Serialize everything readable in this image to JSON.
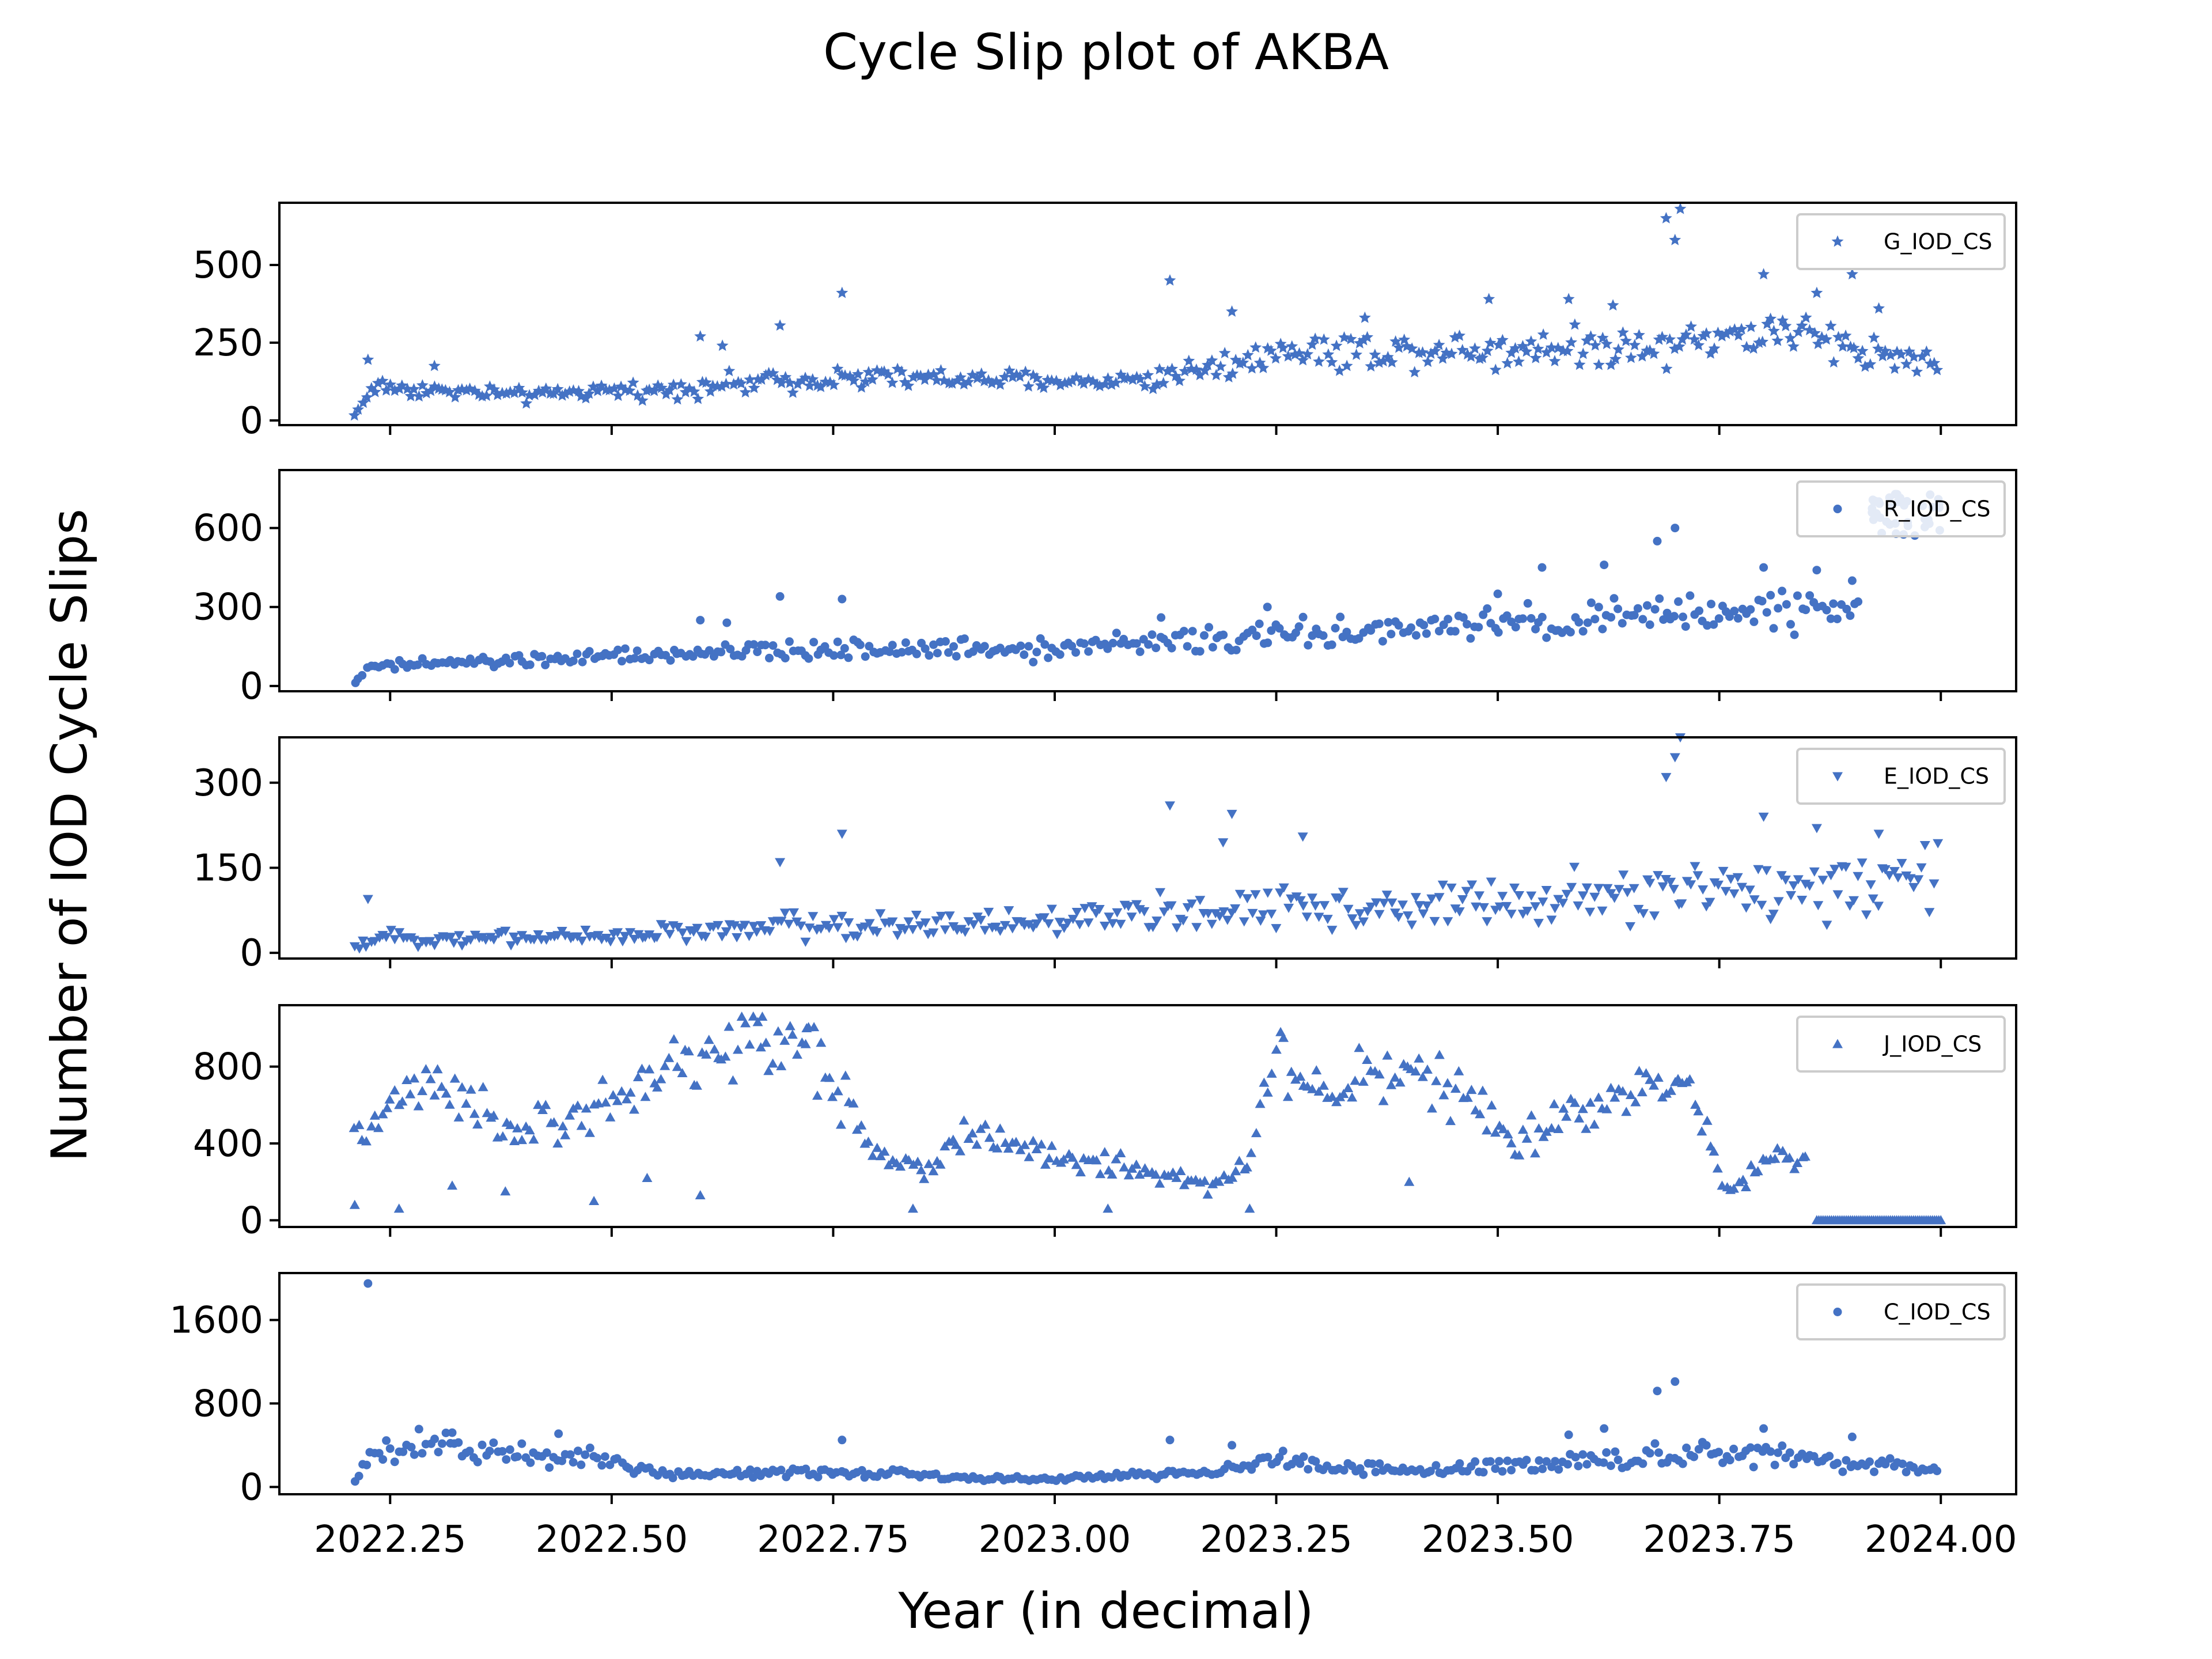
{
  "figure": {
    "title": "Cycle Slip plot of AKBA",
    "xlabel": "Year (in decimal)",
    "ylabel": "Number of IOD Cycle Slips",
    "marker_color": "#4472c4"
  },
  "chart_data": [
    {
      "type": "scatter",
      "series": [
        {
          "name": "G_IOD_CS",
          "marker": "star"
        }
      ],
      "xlim": [
        2022.125,
        2024.085
      ],
      "ylim": [
        -15,
        700
      ],
      "yticks": [
        "0",
        "250",
        "500"
      ],
      "ytick_values": [
        0,
        250,
        500
      ],
      "xticks": [
        "2022.25",
        "2022.50",
        "2022.75",
        "2023.00",
        "2023.25",
        "2023.50",
        "2023.75",
        "2024.00"
      ],
      "xtick_values": [
        2022.25,
        2022.5,
        2022.75,
        2023.0,
        2023.25,
        2023.5,
        2023.75,
        2024.0
      ],
      "legend": "upper right",
      "x_range": [
        2022.21,
        2024.0
      ],
      "baseline": [
        [
          2022.21,
          15
        ],
        [
          2022.23,
          110
        ],
        [
          2022.4,
          80
        ],
        [
          2022.55,
          100
        ],
        [
          2022.75,
          140
        ],
        [
          2023.0,
          125
        ],
        [
          2023.1,
          130
        ],
        [
          2023.15,
          160
        ],
        [
          2023.25,
          220
        ],
        [
          2023.5,
          230
        ],
        [
          2023.7,
          250
        ],
        [
          2023.8,
          290
        ],
        [
          2023.9,
          240
        ],
        [
          2024.0,
          180
        ]
      ],
      "outliers": [
        [
          2022.225,
          195
        ],
        [
          2022.3,
          175
        ],
        [
          2022.6,
          270
        ],
        [
          2022.625,
          240
        ],
        [
          2022.69,
          305
        ],
        [
          2022.76,
          410
        ],
        [
          2023.13,
          450
        ],
        [
          2023.2,
          350
        ],
        [
          2023.35,
          330
        ],
        [
          2023.49,
          390
        ],
        [
          2023.58,
          390
        ],
        [
          2023.63,
          370
        ],
        [
          2023.69,
          650
        ],
        [
          2023.7,
          580
        ],
        [
          2023.706,
          680
        ],
        [
          2023.8,
          470
        ],
        [
          2023.86,
          410
        ],
        [
          2023.9,
          470
        ],
        [
          2023.93,
          360
        ]
      ],
      "spread": 0.22
    },
    {
      "type": "scatter",
      "series": [
        {
          "name": "R_IOD_CS",
          "marker": "circle"
        }
      ],
      "xlim": [
        2022.125,
        2024.085
      ],
      "ylim": [
        -20,
        820
      ],
      "yticks": [
        "0",
        "300",
        "600"
      ],
      "ytick_values": [
        0,
        300,
        600
      ],
      "xticks": [
        "2022.25",
        "2022.50",
        "2022.75",
        "2023.00",
        "2023.25",
        "2023.50",
        "2023.75",
        "2024.00"
      ],
      "xtick_values": [
        2022.25,
        2022.5,
        2022.75,
        2023.0,
        2023.25,
        2023.5,
        2023.75,
        2024.0
      ],
      "legend": "upper right",
      "x_range": [
        2022.21,
        2023.91
      ],
      "baseline": [
        [
          2022.21,
          15
        ],
        [
          2022.23,
          75
        ],
        [
          2022.5,
          110
        ],
        [
          2022.75,
          140
        ],
        [
          2023.0,
          145
        ],
        [
          2023.25,
          190
        ],
        [
          2023.5,
          230
        ],
        [
          2023.75,
          280
        ],
        [
          2023.91,
          300
        ]
      ],
      "outliers": [
        [
          2022.6,
          250
        ],
        [
          2022.63,
          240
        ],
        [
          2022.69,
          340
        ],
        [
          2022.76,
          330
        ],
        [
          2023.12,
          260
        ],
        [
          2023.24,
          300
        ],
        [
          2023.5,
          350
        ],
        [
          2023.55,
          450
        ],
        [
          2023.62,
          460
        ],
        [
          2023.68,
          550
        ],
        [
          2023.7,
          600
        ],
        [
          2023.8,
          450
        ],
        [
          2023.86,
          440
        ],
        [
          2023.9,
          400
        ]
      ],
      "cluster": {
        "x_range": [
          2023.92,
          2024.0
        ],
        "center": 650,
        "spread": 80,
        "count": 40
      },
      "spread": 0.22
    },
    {
      "type": "scatter",
      "series": [
        {
          "name": "E_IOD_CS",
          "marker": "triangle-down"
        }
      ],
      "xlim": [
        2022.125,
        2024.085
      ],
      "ylim": [
        -10,
        380
      ],
      "yticks": [
        "0",
        "150",
        "300"
      ],
      "ytick_values": [
        0,
        150,
        300
      ],
      "xticks": [
        "2022.25",
        "2022.50",
        "2022.75",
        "2023.00",
        "2023.25",
        "2023.50",
        "2023.75",
        "2024.00"
      ],
      "xtick_values": [
        2022.25,
        2022.5,
        2022.75,
        2023.0,
        2023.25,
        2023.5,
        2023.75,
        2024.0
      ],
      "legend": "upper right",
      "x_range": [
        2022.21,
        2024.0
      ],
      "baseline": [
        [
          2022.21,
          5
        ],
        [
          2022.23,
          25
        ],
        [
          2022.5,
          30
        ],
        [
          2022.75,
          50
        ],
        [
          2023.0,
          55
        ],
        [
          2023.25,
          80
        ],
        [
          2023.5,
          85
        ],
        [
          2023.75,
          110
        ],
        [
          2024.0,
          140
        ]
      ],
      "outliers": [
        [
          2022.225,
          95
        ],
        [
          2022.69,
          160
        ],
        [
          2022.76,
          210
        ],
        [
          2023.13,
          260
        ],
        [
          2023.2,
          245
        ],
        [
          2023.19,
          195
        ],
        [
          2023.28,
          205
        ],
        [
          2023.69,
          310
        ],
        [
          2023.7,
          345
        ],
        [
          2023.706,
          380
        ],
        [
          2023.8,
          240
        ],
        [
          2023.86,
          220
        ],
        [
          2023.93,
          210
        ]
      ],
      "spread": 0.4
    },
    {
      "type": "scatter",
      "series": [
        {
          "name": "J_IOD_CS",
          "marker": "triangle-up"
        }
      ],
      "xlim": [
        2022.125,
        2024.085
      ],
      "ylim": [
        -35,
        1120
      ],
      "yticks": [
        "0",
        "400",
        "800"
      ],
      "ytick_values": [
        0,
        400,
        800
      ],
      "xticks": [
        "2022.25",
        "2022.50",
        "2022.75",
        "2023.00",
        "2023.25",
        "2023.50",
        "2023.75",
        "2024.00"
      ],
      "xtick_values": [
        2022.25,
        2022.5,
        2022.75,
        2023.0,
        2023.25,
        2023.5,
        2023.75,
        2024.0
      ],
      "legend": "upper right",
      "x_range": [
        2022.21,
        2023.85
      ],
      "baseline": [
        [
          2022.21,
          400
        ],
        [
          2022.25,
          600
        ],
        [
          2022.3,
          680
        ],
        [
          2022.35,
          550
        ],
        [
          2022.4,
          450
        ],
        [
          2022.5,
          620
        ],
        [
          2022.6,
          850
        ],
        [
          2022.67,
          950
        ],
        [
          2022.73,
          880
        ],
        [
          2022.8,
          350
        ],
        [
          2022.85,
          250
        ],
        [
          2022.9,
          450
        ],
        [
          2023.0,
          330
        ],
        [
          2023.1,
          260
        ],
        [
          2023.18,
          170
        ],
        [
          2023.22,
          300
        ],
        [
          2023.25,
          850
        ],
        [
          2023.3,
          650
        ],
        [
          2023.36,
          800
        ],
        [
          2023.45,
          700
        ],
        [
          2023.52,
          380
        ],
        [
          2023.6,
          600
        ],
        [
          2023.65,
          700
        ],
        [
          2023.72,
          650
        ],
        [
          2023.76,
          150
        ],
        [
          2023.8,
          300
        ],
        [
          2023.85,
          330
        ]
      ],
      "outliers": [
        [
          2022.21,
          80
        ],
        [
          2022.26,
          60
        ],
        [
          2022.32,
          180
        ],
        [
          2022.38,
          150
        ],
        [
          2022.48,
          100
        ],
        [
          2022.54,
          220
        ],
        [
          2022.6,
          130
        ],
        [
          2022.67,
          1060
        ],
        [
          2022.72,
          1000
        ],
        [
          2022.84,
          60
        ],
        [
          2023.06,
          60
        ],
        [
          2023.22,
          60
        ],
        [
          2023.4,
          200
        ]
      ],
      "zero_run": {
        "x_range": [
          2023.86,
          2024.0
        ],
        "value": 0,
        "count": 60
      },
      "spread": 0.18
    },
    {
      "type": "scatter",
      "series": [
        {
          "name": "C_IOD_CS",
          "marker": "circle"
        }
      ],
      "xlim": [
        2022.125,
        2024.085
      ],
      "ylim": [
        -70,
        2050
      ],
      "yticks": [
        "0",
        "800",
        "1600"
      ],
      "ytick_values": [
        0,
        800,
        1600
      ],
      "xticks": [
        "2022.25",
        "2022.50",
        "2022.75",
        "2023.00",
        "2023.25",
        "2023.50",
        "2023.75",
        "2024.00"
      ],
      "xtick_values": [
        2022.25,
        2022.5,
        2022.75,
        2023.0,
        2023.25,
        2023.5,
        2023.75,
        2024.0
      ],
      "legend": "upper right",
      "x_range": [
        2022.21,
        2024.0
      ],
      "baseline": [
        [
          2022.21,
          50
        ],
        [
          2022.23,
          330
        ],
        [
          2022.3,
          380
        ],
        [
          2022.4,
          300
        ],
        [
          2022.5,
          260
        ],
        [
          2022.55,
          120
        ],
        [
          2022.7,
          150
        ],
        [
          2022.8,
          140
        ],
        [
          2022.9,
          90
        ],
        [
          2023.0,
          80
        ],
        [
          2023.1,
          110
        ],
        [
          2023.2,
          160
        ],
        [
          2023.25,
          300
        ],
        [
          2023.3,
          200
        ],
        [
          2023.4,
          150
        ],
        [
          2023.5,
          200
        ],
        [
          2023.6,
          250
        ],
        [
          2023.7,
          320
        ],
        [
          2023.8,
          300
        ],
        [
          2023.9,
          220
        ],
        [
          2024.0,
          150
        ]
      ],
      "outliers": [
        [
          2022.225,
          1950
        ],
        [
          2022.32,
          520
        ],
        [
          2022.44,
          510
        ],
        [
          2022.76,
          450
        ],
        [
          2023.13,
          450
        ],
        [
          2023.2,
          400
        ],
        [
          2023.58,
          500
        ],
        [
          2023.62,
          560
        ],
        [
          2023.68,
          920
        ],
        [
          2023.7,
          1010
        ],
        [
          2023.8,
          560
        ],
        [
          2023.9,
          480
        ]
      ],
      "spread": 0.3
    }
  ]
}
